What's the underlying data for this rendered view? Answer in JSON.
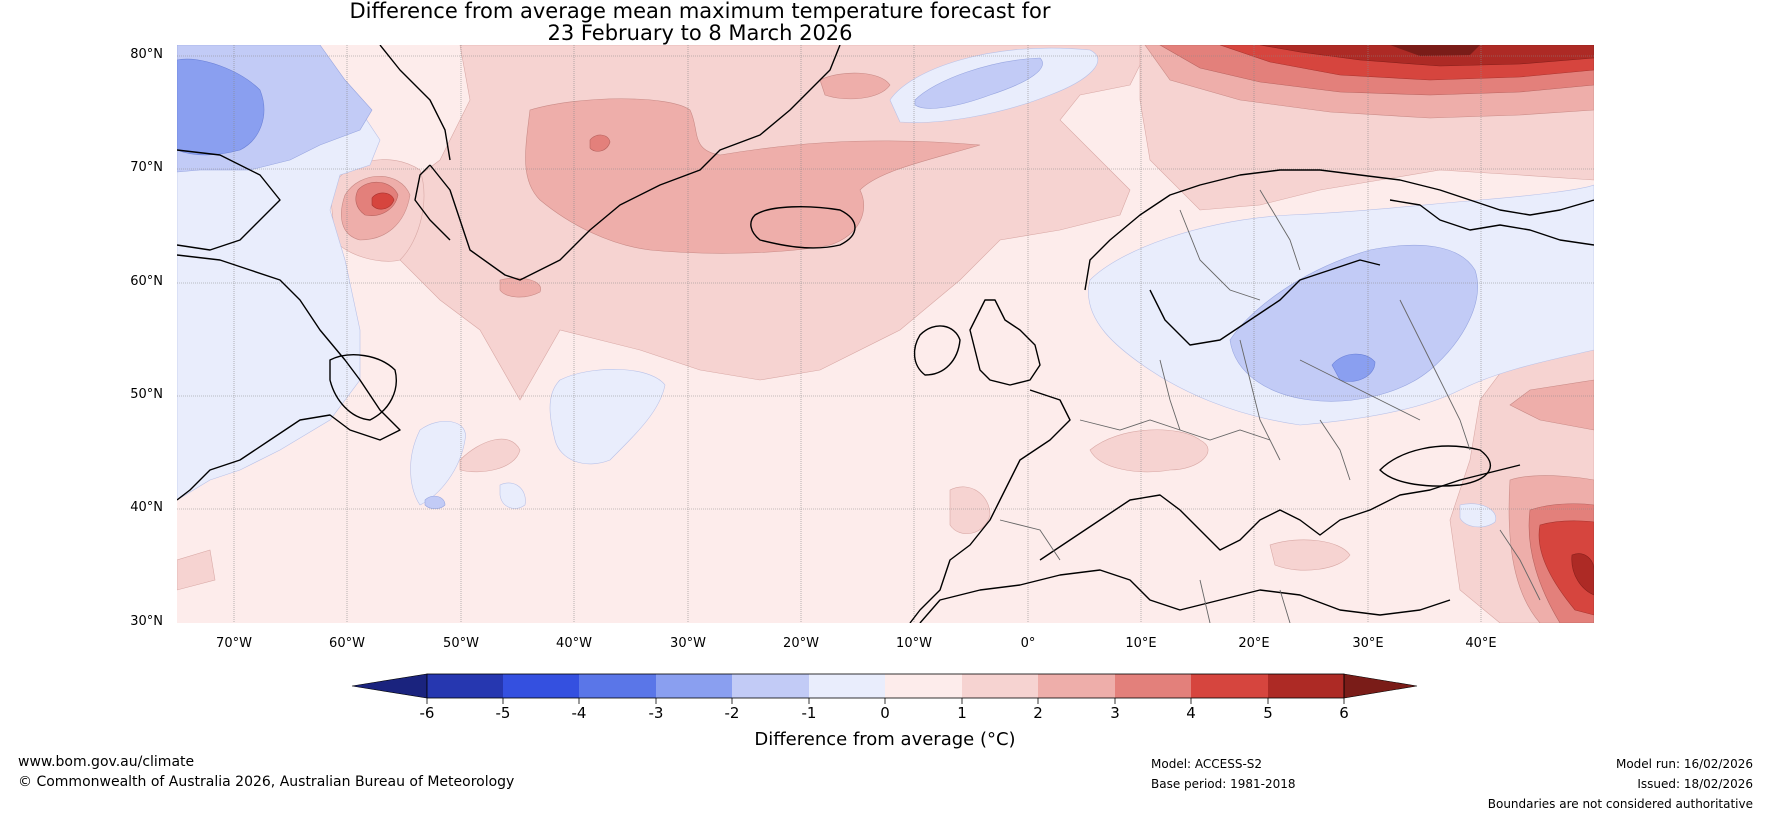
{
  "title": {
    "line1": "Difference from average mean maximum temperature forecast for",
    "line2": "23 February to 8 March 2026"
  },
  "map": {
    "lat_labels": [
      "80°N",
      "70°N",
      "60°N",
      "50°N",
      "40°N",
      "30°N"
    ],
    "lon_labels": [
      "70°W",
      "60°W",
      "50°W",
      "40°W",
      "30°W",
      "20°W",
      "10°W",
      "0°",
      "10°E",
      "20°E",
      "30°E",
      "40°E"
    ],
    "lat_range": [
      30,
      81
    ],
    "lon_range": [
      -75,
      50
    ]
  },
  "colorbar": {
    "label": "Difference from average (°C)",
    "ticks": [
      "-6",
      "-5",
      "-4",
      "-3",
      "-2",
      "-1",
      "0",
      "1",
      "2",
      "3",
      "4",
      "5",
      "6"
    ],
    "colors": {
      "lt_minus6": "#1a237e",
      "m6_m5": "#2637b0",
      "m5_m4": "#3450e0",
      "m4_m3": "#5a76e8",
      "m3_m2": "#8a9ff0",
      "m2_m1": "#c2cbf6",
      "m1_0": "#e9edfc",
      "0_1": "#fdeceb",
      "1_2": "#f6d3d1",
      "2_3": "#eeaeaa",
      "3_4": "#e3807b",
      "4_5": "#d6453e",
      "5_6": "#ad2a25",
      "gt_6": "#7a1c18"
    }
  },
  "footer": {
    "website": "www.bom.gov.au/climate",
    "copyright": "© Commonwealth of Australia 2026, Australian Bureau of Meteorology",
    "model": "Model: ACCESS-S2",
    "base_period": "Base period: 1981-2018",
    "model_run": "Model run: 16/02/2026",
    "issued": "Issued: 18/02/2026",
    "disclaimer": "Boundaries are not considered authoritative"
  }
}
